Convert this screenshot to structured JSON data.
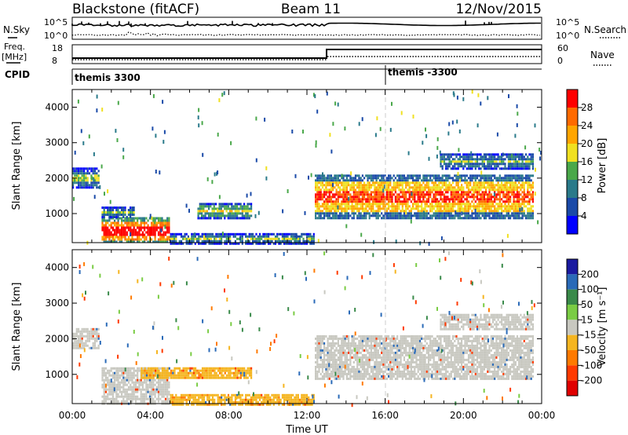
{
  "header": {
    "station": "Blackstone (fitACF)",
    "beam": "Beam 11",
    "date": "12/Nov/2015"
  },
  "strips": {
    "nsky_label": "N.Sky",
    "nsearch_label": "N.Search",
    "sky_ticks": [
      "10^5",
      "10^0"
    ],
    "freq_label_1": "Freq.",
    "freq_label_2": "[MHz]",
    "freq_ticks": [
      "18",
      "8"
    ],
    "nave_ticks": [
      "60",
      "0"
    ],
    "nave_label": "Nave",
    "cpid_label": "CPID",
    "cpid_segments": [
      {
        "label": "themis 3300",
        "start_hour": 0
      },
      {
        "label": "themis -3300",
        "start_hour": 16
      }
    ]
  },
  "colorbars": {
    "power": {
      "label": "Power [dB]",
      "ticks": [
        "28",
        "24",
        "20",
        "16",
        "12",
        "8",
        "4"
      ],
      "colors": [
        "#ff0000",
        "#ff6a00",
        "#ffa500",
        "#f0e020",
        "#4aa84a",
        "#2a7a8a",
        "#1a4aa8",
        "#0000ff"
      ]
    },
    "velocity": {
      "label": "Velocity [m s⁻¹]",
      "ticks": [
        "200",
        "100",
        "50",
        "15",
        "-15",
        "-50",
        "-100",
        "-200"
      ],
      "colors": [
        "#1a1aa0",
        "#2a6ab8",
        "#3a8a4a",
        "#7acc44",
        "#c8c8c0",
        "#f5b520",
        "#ff7a00",
        "#ff3a00",
        "#e00000"
      ]
    }
  },
  "chart_data": [
    {
      "type": "heatmap",
      "title": "Power",
      "ylabel": "Slant Range [km]",
      "xlabel": "",
      "x_range_hours": [
        0,
        24
      ],
      "ylim": [
        180,
        4500
      ],
      "y_ticks": [
        1000,
        2000,
        3000,
        4000
      ],
      "colorbar": "Power [dB]",
      "bands": [
        {
          "start": 0.0,
          "end": 1.4,
          "lower": 1750,
          "upper": 2300,
          "value": 8
        },
        {
          "start": 1.5,
          "end": 5.0,
          "lower": 180,
          "upper": 900,
          "value": 24
        },
        {
          "start": 1.5,
          "end": 3.2,
          "lower": 900,
          "upper": 1200,
          "value": 8
        },
        {
          "start": 5.0,
          "end": 12.4,
          "lower": 180,
          "upper": 450,
          "value": 8
        },
        {
          "start": 6.4,
          "end": 9.2,
          "lower": 900,
          "upper": 1300,
          "value": 12
        },
        {
          "start": 12.4,
          "end": 23.6,
          "lower": 900,
          "upper": 2100,
          "value": 20
        },
        {
          "start": 18.8,
          "end": 23.6,
          "lower": 2300,
          "upper": 2700,
          "value": 8
        }
      ]
    },
    {
      "type": "heatmap",
      "title": "Velocity",
      "ylabel": "Slant Range [km]",
      "xlabel": "Time UT",
      "x_range_hours": [
        0,
        24
      ],
      "ylim": [
        180,
        4500
      ],
      "y_ticks": [
        1000,
        2000,
        3000,
        4000
      ],
      "x_tick_labels": [
        "00:00",
        "04:00",
        "08:00",
        "12:00",
        "16:00",
        "20:00",
        "00:00"
      ],
      "colorbar": "Velocity [m s⁻¹]",
      "bands": [
        {
          "start": 0.0,
          "end": 1.4,
          "lower": 1750,
          "upper": 2300,
          "value": 0
        },
        {
          "start": 1.5,
          "end": 5.0,
          "lower": 180,
          "upper": 1200,
          "value": 0
        },
        {
          "start": 3.5,
          "end": 9.2,
          "lower": 900,
          "upper": 1200,
          "value": -40
        },
        {
          "start": 5.0,
          "end": 12.4,
          "lower": 180,
          "upper": 450,
          "value": -40
        },
        {
          "start": 12.4,
          "end": 23.6,
          "lower": 900,
          "upper": 2100,
          "value": 0
        },
        {
          "start": 18.8,
          "end": 23.6,
          "lower": 2300,
          "upper": 2700,
          "value": 0
        }
      ]
    }
  ]
}
